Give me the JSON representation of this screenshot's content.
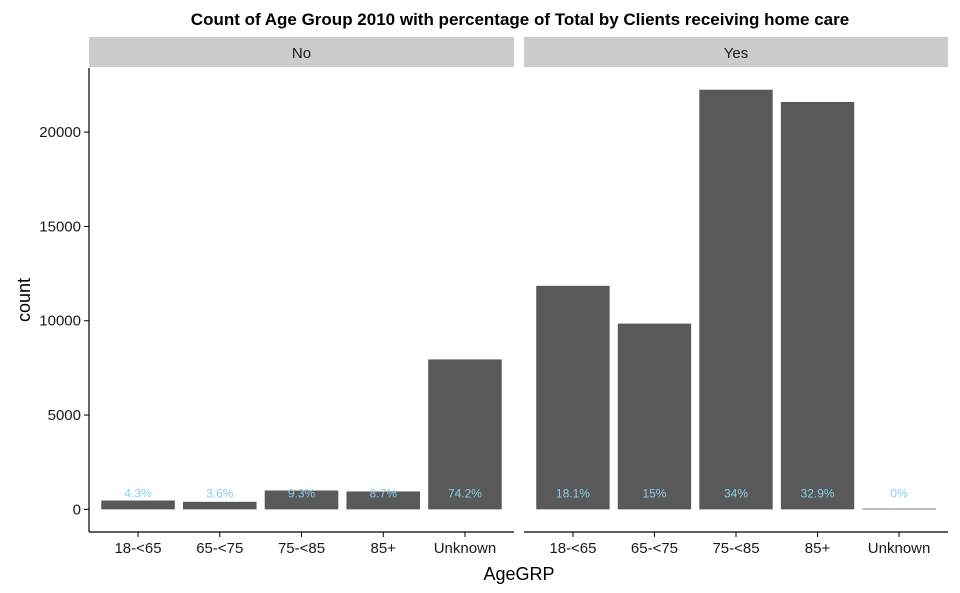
{
  "chart_data": {
    "type": "bar",
    "title": "Count of Age Group 2010 with percentage of Total by Clients receiving home care",
    "xlabel": "AgeGRP",
    "ylabel": "count",
    "categories": [
      "18-<65",
      "65-<75",
      "75-<85",
      "85+",
      "Unknown"
    ],
    "y_ticks": [
      "0",
      "5000",
      "10000",
      "15000",
      "20000"
    ],
    "ylim": [
      -1200,
      23400
    ],
    "facets": [
      {
        "name": "No",
        "values": [
          470,
          400,
          1000,
          950,
          7950
        ],
        "labels": [
          "4.3%",
          "3.6%",
          "9.3%",
          "8.7%",
          "74.2%"
        ]
      },
      {
        "name": "Yes",
        "values": [
          11850,
          9850,
          22250,
          21600,
          40
        ],
        "labels": [
          "18.1%",
          "15%",
          "34%",
          "32.9%",
          "0%"
        ]
      }
    ],
    "colors": {
      "bar": "#595959",
      "label": "#87ceeb",
      "strip": "#cccccc",
      "axis": "#000000"
    },
    "grid": false,
    "legend": "none"
  }
}
